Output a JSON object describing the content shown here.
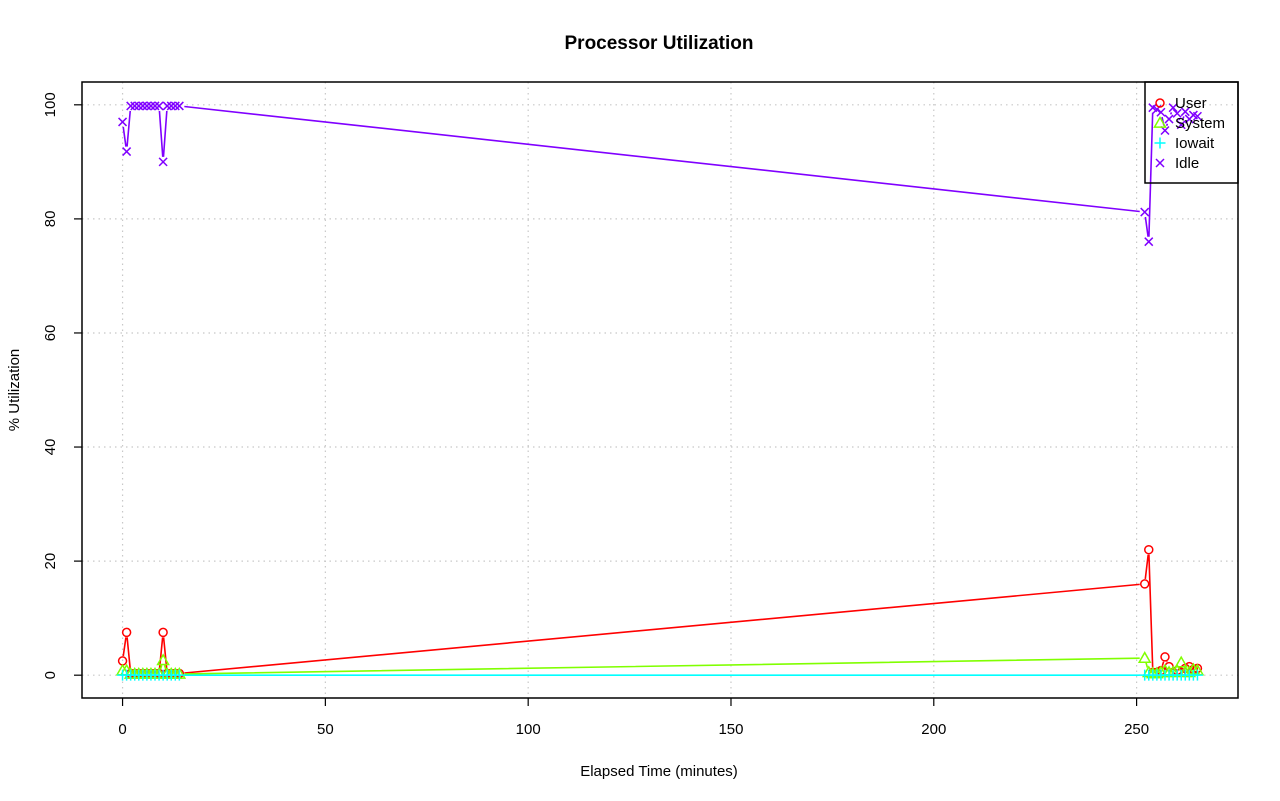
{
  "chart_data": {
    "type": "line",
    "title": "Processor Utilization",
    "xlabel": "Elapsed Time (minutes)",
    "ylabel": "% Utilization",
    "xlim": [
      -10,
      275
    ],
    "ylim": [
      -4,
      104
    ],
    "x_ticks": [
      0,
      50,
      100,
      150,
      200,
      250
    ],
    "y_ticks": [
      0,
      20,
      40,
      60,
      80,
      100
    ],
    "grid": true,
    "legend_position": "top-right",
    "x": [
      0,
      1,
      2,
      3,
      4,
      5,
      6,
      7,
      8,
      9,
      10,
      11,
      12,
      13,
      14,
      252,
      253,
      254,
      255,
      256,
      257,
      258,
      259,
      260,
      261,
      262,
      263,
      264,
      265
    ],
    "series": [
      {
        "name": "User",
        "color": "#ff0000",
        "marker": "circle",
        "values": [
          2.5,
          7.5,
          0.3,
          0.3,
          0.3,
          0.3,
          0.3,
          0.3,
          0.3,
          0.3,
          7.5,
          0.3,
          0.3,
          0.3,
          0.3,
          16,
          22,
          0.5,
          0.5,
          0.8,
          3.2,
          1.5,
          0.5,
          0.8,
          0.5,
          1.2,
          1.5,
          1.0,
          1.2
        ]
      },
      {
        "name": "System",
        "color": "#80ff00",
        "marker": "triangle",
        "values": [
          0.8,
          0.8,
          0.2,
          0.2,
          0.2,
          0.2,
          0.2,
          0.2,
          0.2,
          0.2,
          2.6,
          0.2,
          0.2,
          0.2,
          0.2,
          3.0,
          0.5,
          0.3,
          0.3,
          0.5,
          0.8,
          0.5,
          0.5,
          0.8,
          2.2,
          0.5,
          0.5,
          1.0,
          0.8
        ]
      },
      {
        "name": "Iowait",
        "color": "#00ffff",
        "marker": "plus",
        "values": [
          0,
          0,
          0,
          0,
          0,
          0,
          0,
          0,
          0,
          0,
          0,
          0,
          0,
          0,
          0,
          0,
          0,
          0,
          0,
          0,
          0,
          0,
          0,
          0,
          0,
          0,
          0,
          0,
          0
        ]
      },
      {
        "name": "Idle",
        "color": "#8000ff",
        "marker": "cross",
        "values": [
          97,
          91.8,
          99.8,
          99.8,
          99.8,
          99.8,
          99.8,
          99.8,
          99.8,
          99.8,
          90,
          99.8,
          99.8,
          99.8,
          99.8,
          81.2,
          76,
          99.5,
          99.2,
          98.7,
          95.5,
          97.5,
          99.5,
          98.5,
          96.5,
          98.8,
          97.5,
          98.2,
          98
        ]
      }
    ]
  }
}
